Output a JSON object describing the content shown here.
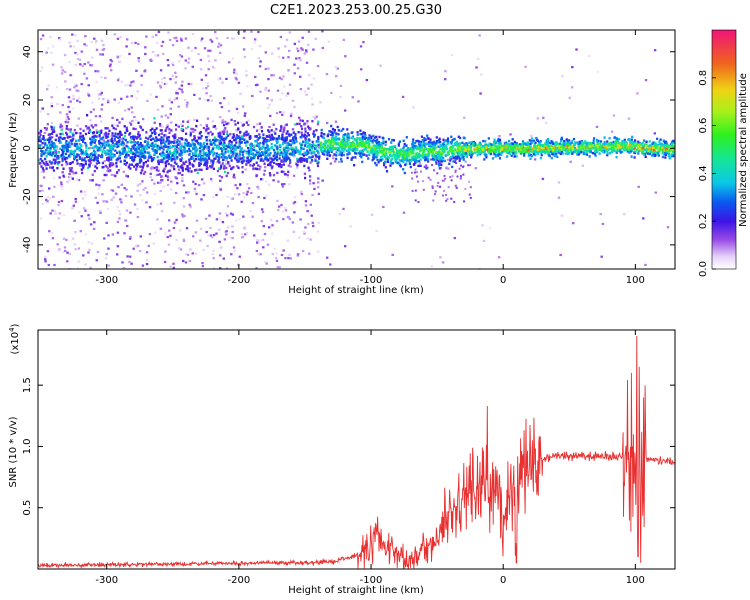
{
  "figure": {
    "title": "C2E1.2023.253.00.25.G30"
  },
  "chart_data": [
    {
      "type": "heatmap",
      "title": "C2E1.2023.253.00.25.G30",
      "xlabel": "Height of straight line (km)",
      "ylabel": "Frequency (Hz)",
      "xlim": [
        -352,
        130
      ],
      "ylim": [
        -50,
        49
      ],
      "xticks": [
        -300,
        -200,
        -100,
        0,
        100
      ],
      "xtick_labels": [
        "-300",
        "-200",
        "-100",
        "0",
        "100"
      ],
      "yticks": [
        -40,
        -20,
        0,
        20,
        40
      ],
      "ytick_labels": [
        "-40",
        "-20",
        "0",
        "20",
        "40"
      ],
      "grid": false,
      "colorbar": {
        "label": "Normalized spectral amplitude",
        "range": [
          0,
          1
        ],
        "ticks": [
          0.0,
          0.2,
          0.4,
          0.6,
          0.8
        ],
        "tick_labels": [
          "0.0",
          "0.2",
          "0.4",
          "0.6",
          "0.8"
        ],
        "colormap": [
          "#ffffff",
          "#dcc6f6",
          "#a56ae6",
          "#5a1ae0",
          "#1e1ef2",
          "#0aa8f0",
          "#15e6b4",
          "#2ef01e",
          "#c8f01a",
          "#f0c015",
          "#f0501e",
          "#f01478"
        ]
      },
      "ridge": {
        "x": [
          -352,
          -300,
          -250,
          -200,
          -150,
          -130,
          -110,
          -90,
          -80,
          -70,
          -60,
          -50,
          -40,
          -30,
          -20,
          -10,
          0,
          20,
          50,
          80,
          95,
          110,
          130
        ],
        "freq": [
          0,
          0.3,
          -0.2,
          0.2,
          0.5,
          2.5,
          2.0,
          -1.0,
          -2.5,
          -1.5,
          -0.5,
          -1.0,
          0,
          0,
          0.3,
          0.5,
          0.5,
          0.3,
          0.8,
          1.0,
          1.5,
          0.3,
          0.3
        ]
      }
    },
    {
      "type": "line",
      "xlabel": "Height of straight line (km)",
      "ylabel": "SNR (10 * v/v)",
      "y_multiplier": "(x10",
      "y_multiplier_exp": "4",
      "y_multiplier_close": ")",
      "xlim": [
        -352,
        130
      ],
      "ylim": [
        0,
        1.95
      ],
      "xticks": [
        -300,
        -200,
        -100,
        0,
        100
      ],
      "xtick_labels": [
        "-300",
        "-200",
        "-100",
        "0",
        "100"
      ],
      "yticks": [
        0.5,
        1.0,
        1.5
      ],
      "ytick_labels": [
        "0.5",
        "1.0",
        "1.5"
      ],
      "grid": false,
      "series": [
        {
          "color": "#e83030",
          "x": [
            -352,
            -300,
            -250,
            -200,
            -180,
            -150,
            -130,
            -120,
            -110,
            -100,
            -95,
            -90,
            -85,
            -80,
            -75,
            -70,
            -65,
            -60,
            -55,
            -50,
            -45,
            -40,
            -35,
            -30,
            -25,
            -20,
            -15,
            -10,
            -5,
            0,
            5,
            10,
            15,
            20,
            25,
            30,
            40,
            60,
            80,
            88,
            92,
            95,
            98,
            100,
            102,
            104,
            106,
            110,
            120,
            130
          ],
          "y": [
            0.03,
            0.035,
            0.04,
            0.045,
            0.05,
            0.05,
            0.06,
            0.08,
            0.12,
            0.18,
            0.25,
            0.22,
            0.2,
            0.12,
            0.08,
            0.07,
            0.09,
            0.15,
            0.2,
            0.25,
            0.35,
            0.45,
            0.55,
            0.6,
            0.7,
            0.65,
            0.72,
            0.62,
            0.7,
            0.45,
            0.62,
            0.5,
            0.85,
            0.88,
            0.92,
            0.9,
            0.92,
            0.92,
            0.92,
            0.92,
            0.88,
            0.9,
            0.7,
            1.1,
            0.6,
            0.9,
            0.9,
            0.9,
            0.88,
            0.87
          ],
          "spikes": [
            {
              "x": -12,
              "y": 1.33
            },
            {
              "x": 10,
              "y": 0.05
            },
            {
              "x": 22,
              "y": 1.05
            },
            {
              "x": 28,
              "y": 1.08
            },
            {
              "x": 97,
              "y": 1.6
            },
            {
              "x": 99,
              "y": 0.7
            },
            {
              "x": 101,
              "y": 1.9
            },
            {
              "x": 102,
              "y": 0.1
            },
            {
              "x": 103,
              "y": 1.65
            },
            {
              "x": 104,
              "y": 0.05
            }
          ]
        }
      ]
    }
  ]
}
